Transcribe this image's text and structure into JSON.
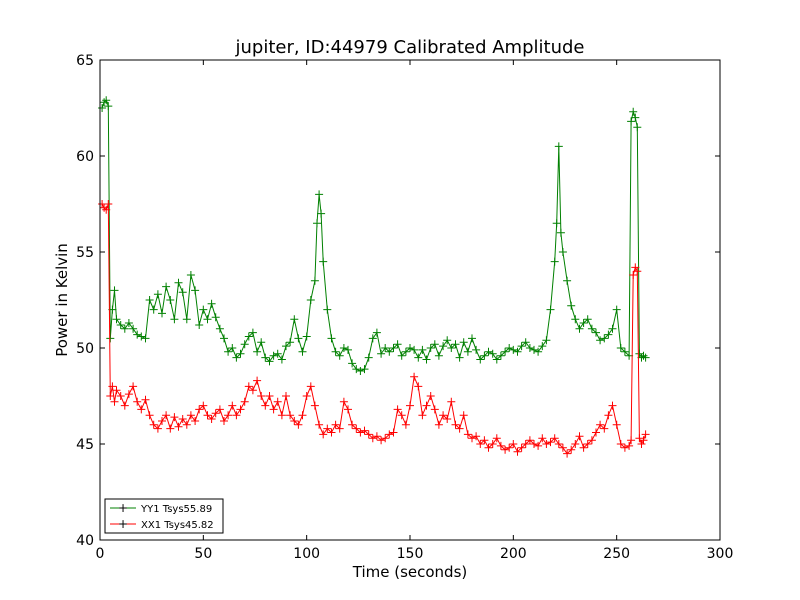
{
  "chart_data": {
    "type": "line",
    "title": "jupiter, ID:44979 Calibrated Amplitude",
    "xlabel": "Time (seconds)",
    "ylabel": "Power in Kelvin",
    "xlim": [
      0,
      300
    ],
    "ylim": [
      40,
      65
    ],
    "xticks": [
      0,
      50,
      100,
      150,
      200,
      250,
      300
    ],
    "yticks": [
      40,
      45,
      50,
      55,
      60,
      65
    ],
    "grid": false,
    "legend_position": "lower-left",
    "marker": "+",
    "series": [
      {
        "name": "YY1 Tsys55.89",
        "color": "#008000",
        "x": [
          1,
          2,
          3,
          4,
          5,
          6,
          7,
          8,
          10,
          12,
          14,
          16,
          18,
          20,
          22,
          24,
          26,
          28,
          30,
          32,
          34,
          36,
          38,
          40,
          42,
          44,
          46,
          48,
          50,
          52,
          54,
          56,
          58,
          60,
          62,
          64,
          66,
          68,
          70,
          72,
          74,
          76,
          78,
          80,
          82,
          84,
          86,
          88,
          90,
          92,
          94,
          96,
          98,
          100,
          102,
          104,
          105,
          106,
          107,
          108,
          110,
          112,
          114,
          116,
          118,
          120,
          122,
          124,
          126,
          128,
          130,
          132,
          134,
          136,
          138,
          140,
          142,
          144,
          146,
          148,
          150,
          152,
          154,
          156,
          158,
          160,
          162,
          164,
          166,
          168,
          170,
          172,
          174,
          176,
          178,
          180,
          182,
          184,
          186,
          188,
          190,
          192,
          194,
          196,
          198,
          200,
          202,
          204,
          206,
          208,
          210,
          212,
          214,
          216,
          218,
          220,
          221,
          222,
          223,
          224,
          226,
          228,
          230,
          232,
          234,
          236,
          238,
          240,
          242,
          244,
          246,
          248,
          250,
          252,
          254,
          256,
          257,
          258,
          259,
          260,
          261,
          262,
          263,
          264
        ],
        "values": [
          62.5,
          62.8,
          62.9,
          62.6,
          50.5,
          52.0,
          53.0,
          51.5,
          51.2,
          51.0,
          51.3,
          51.0,
          50.7,
          50.6,
          50.5,
          52.5,
          52.0,
          52.8,
          51.8,
          53.2,
          52.5,
          51.5,
          53.4,
          52.9,
          51.5,
          53.8,
          53.0,
          51.2,
          52.0,
          51.5,
          52.3,
          51.6,
          51.0,
          50.5,
          49.8,
          50.0,
          49.5,
          49.7,
          50.2,
          50.6,
          50.8,
          49.8,
          50.3,
          49.5,
          49.3,
          49.6,
          49.7,
          49.4,
          50.1,
          50.3,
          51.5,
          50.5,
          49.8,
          50.6,
          52.5,
          53.5,
          56.5,
          58.0,
          57.0,
          54.5,
          52.0,
          50.5,
          49.8,
          49.6,
          50.0,
          49.9,
          49.2,
          48.9,
          48.8,
          48.9,
          49.5,
          50.5,
          50.8,
          49.7,
          50.0,
          49.8,
          50.0,
          50.2,
          49.6,
          49.8,
          50.0,
          49.9,
          49.5,
          49.9,
          49.4,
          50.0,
          50.2,
          49.6,
          50.1,
          50.4,
          50.0,
          50.2,
          49.5,
          50.3,
          49.8,
          50.5,
          49.9,
          49.4,
          49.6,
          49.8,
          49.7,
          49.4,
          49.6,
          49.8,
          50.0,
          49.9,
          49.8,
          50.1,
          50.3,
          50.0,
          49.9,
          49.8,
          50.1,
          50.4,
          52.0,
          54.5,
          56.5,
          60.5,
          56.0,
          55.0,
          53.5,
          52.2,
          51.5,
          51.0,
          51.3,
          51.5,
          51.0,
          50.8,
          50.4,
          50.5,
          50.7,
          51.0,
          52.0,
          50.0,
          49.8,
          49.6,
          61.8,
          62.3,
          62.0,
          61.5,
          49.7,
          49.5,
          49.6,
          49.5
        ]
      },
      {
        "name": "XX1 Tsys45.82",
        "color": "#ff0000",
        "x": [
          1,
          2,
          3,
          4,
          5,
          6,
          7,
          8,
          10,
          12,
          14,
          16,
          18,
          20,
          22,
          24,
          26,
          28,
          30,
          32,
          34,
          36,
          38,
          40,
          42,
          44,
          46,
          48,
          50,
          52,
          54,
          56,
          58,
          60,
          62,
          64,
          66,
          68,
          70,
          72,
          74,
          76,
          78,
          80,
          82,
          84,
          86,
          88,
          90,
          92,
          94,
          96,
          98,
          100,
          102,
          104,
          106,
          108,
          110,
          112,
          114,
          116,
          118,
          120,
          122,
          124,
          126,
          128,
          130,
          132,
          134,
          136,
          138,
          140,
          142,
          144,
          146,
          148,
          150,
          152,
          154,
          156,
          158,
          160,
          162,
          164,
          166,
          168,
          170,
          172,
          174,
          176,
          178,
          180,
          182,
          184,
          186,
          188,
          190,
          192,
          194,
          196,
          198,
          200,
          202,
          204,
          206,
          208,
          210,
          212,
          214,
          216,
          218,
          220,
          222,
          224,
          226,
          228,
          230,
          232,
          234,
          236,
          238,
          240,
          242,
          244,
          246,
          248,
          250,
          252,
          254,
          256,
          257,
          258,
          259,
          260,
          261,
          262,
          263,
          264
        ],
        "values": [
          57.5,
          57.3,
          57.2,
          57.5,
          47.5,
          48.0,
          47.2,
          47.8,
          47.5,
          47.0,
          47.6,
          48.0,
          47.2,
          46.8,
          47.3,
          46.5,
          46.0,
          45.8,
          46.2,
          46.5,
          45.8,
          46.4,
          45.9,
          46.3,
          46.0,
          46.5,
          46.2,
          46.8,
          47.0,
          46.5,
          46.3,
          46.6,
          46.8,
          46.2,
          46.5,
          47.0,
          46.5,
          46.8,
          47.2,
          48.0,
          47.8,
          48.3,
          47.5,
          47.0,
          47.5,
          46.8,
          47.2,
          46.5,
          47.5,
          46.5,
          46.2,
          46.0,
          46.5,
          47.5,
          48.0,
          47.0,
          46.0,
          45.5,
          45.8,
          45.6,
          46.0,
          45.8,
          47.2,
          46.8,
          46.0,
          45.8,
          45.6,
          45.7,
          45.5,
          45.3,
          45.4,
          45.2,
          45.3,
          45.5,
          45.6,
          46.8,
          46.5,
          46.0,
          47.0,
          48.5,
          48.0,
          46.5,
          47.0,
          47.5,
          46.8,
          46.0,
          46.5,
          46.3,
          47.2,
          46.0,
          45.8,
          46.5,
          45.5,
          45.3,
          45.4,
          45.0,
          45.2,
          44.8,
          45.0,
          45.3,
          44.9,
          44.7,
          44.8,
          45.0,
          44.6,
          44.8,
          45.0,
          45.2,
          45.0,
          44.9,
          45.3,
          45.0,
          45.1,
          45.3,
          45.0,
          44.8,
          44.5,
          44.7,
          45.0,
          45.4,
          44.8,
          45.0,
          45.2,
          45.6,
          46.0,
          45.8,
          46.5,
          47.0,
          46.0,
          45.0,
          44.8,
          44.9,
          45.2,
          53.8,
          54.2,
          54.0,
          45.3,
          45.0,
          45.2,
          45.5
        ]
      }
    ]
  }
}
